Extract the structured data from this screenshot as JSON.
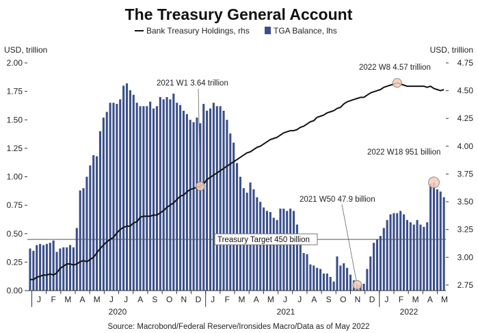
{
  "chart_data": {
    "type": "bar+line",
    "title": "The Treasury General Account",
    "legend": {
      "placement": "top-center",
      "items": [
        {
          "name": "Bank Treasury Holdings, rhs",
          "kind": "line",
          "color": "#111111"
        },
        {
          "name": "TGA Balance, lhs",
          "kind": "bar",
          "color": "#3a4f8a"
        }
      ]
    },
    "left_axis": {
      "label": "USD, trillion",
      "ylim": [
        0,
        2.0
      ],
      "ticks": [
        "0.00",
        "0.25",
        "0.50",
        "0.75",
        "1.00",
        "1.25",
        "1.50",
        "1.75",
        "2.00"
      ]
    },
    "right_axis": {
      "label": "USD, trillion",
      "ylim": [
        2.7,
        4.75
      ],
      "ticks": [
        "2.75",
        "3.00",
        "3.25",
        "3.50",
        "3.75",
        "4.00",
        "4.25",
        "4.50",
        "4.75"
      ]
    },
    "x_axis": {
      "months": [
        "J",
        "F",
        "M",
        "A",
        "M",
        "J",
        "J",
        "A",
        "S",
        "O",
        "N",
        "D",
        "J",
        "F",
        "M",
        "A",
        "M",
        "J",
        "J",
        "A",
        "S",
        "O",
        "N",
        "D",
        "J",
        "F",
        "M",
        "A",
        "M"
      ],
      "years": [
        "2020",
        "2021",
        "2022"
      ]
    },
    "bar_series": {
      "name": "TGA Balance, lhs",
      "color": "#3a4f8a",
      "values": [
        0.37,
        0.35,
        0.4,
        0.41,
        0.4,
        0.41,
        0.42,
        0.44,
        0.34,
        0.37,
        0.38,
        0.38,
        0.4,
        0.38,
        0.55,
        0.88,
        0.9,
        1.0,
        1.1,
        1.19,
        1.18,
        1.4,
        1.52,
        1.57,
        1.65,
        1.65,
        1.64,
        1.68,
        1.8,
        1.82,
        1.76,
        1.72,
        1.65,
        1.62,
        1.62,
        1.62,
        1.66,
        1.6,
        1.62,
        1.7,
        1.68,
        1.7,
        1.68,
        1.73,
        1.65,
        1.63,
        1.58,
        1.55,
        1.5,
        1.48,
        1.52,
        1.47,
        1.64,
        1.58,
        1.6,
        1.65,
        1.62,
        1.62,
        1.58,
        1.5,
        1.38,
        1.3,
        1.12,
        1.0,
        0.9,
        0.86,
        0.95,
        0.89,
        0.82,
        0.78,
        0.73,
        0.7,
        0.69,
        0.64,
        0.62,
        0.72,
        0.72,
        0.7,
        0.72,
        0.7,
        0.58,
        0.45,
        0.33,
        0.32,
        0.23,
        0.22,
        0.2,
        0.19,
        0.15,
        0.15,
        0.12,
        0.08,
        0.3,
        0.22,
        0.24,
        0.2,
        0.14,
        0.09,
        0.05,
        0.05,
        0.06,
        0.19,
        0.3,
        0.42,
        0.45,
        0.48,
        0.55,
        0.62,
        0.67,
        0.68,
        0.68,
        0.7,
        0.67,
        0.62,
        0.6,
        0.58,
        0.62,
        0.58,
        0.56,
        0.6,
        0.94,
        0.95,
        0.89,
        0.87,
        0.82
      ]
    },
    "line_series": {
      "name": "Bank Treasury Holdings, rhs",
      "color": "#111111",
      "values": [
        2.8,
        2.8,
        2.82,
        2.83,
        2.84,
        2.84,
        2.85,
        2.84,
        2.86,
        2.9,
        2.92,
        2.94,
        2.94,
        2.93,
        2.94,
        2.96,
        2.97,
        2.96,
        2.98,
        3.0,
        3.04,
        3.08,
        3.11,
        3.14,
        3.16,
        3.18,
        3.22,
        3.25,
        3.27,
        3.28,
        3.28,
        3.31,
        3.32,
        3.36,
        3.37,
        3.37,
        3.37,
        3.38,
        3.38,
        3.4,
        3.42,
        3.45,
        3.47,
        3.49,
        3.52,
        3.55,
        3.56,
        3.59,
        3.61,
        3.62,
        3.63,
        3.64,
        3.66,
        3.7,
        3.72,
        3.74,
        3.76,
        3.78,
        3.8,
        3.82,
        3.84,
        3.86,
        3.88,
        3.9,
        3.92,
        3.94,
        3.95,
        3.97,
        3.99,
        4.0,
        4.02,
        4.04,
        4.06,
        4.07,
        4.08,
        4.1,
        4.12,
        4.13,
        4.14,
        4.14,
        4.15,
        4.17,
        4.18,
        4.2,
        4.22,
        4.23,
        4.26,
        4.27,
        4.28,
        4.3,
        4.31,
        4.32,
        4.34,
        4.35,
        4.38,
        4.4,
        4.41,
        4.42,
        4.43,
        4.44,
        4.44,
        4.46,
        4.48,
        4.49,
        4.5,
        4.51,
        4.53,
        4.54,
        4.55,
        4.56,
        4.57,
        4.56,
        4.55,
        4.54,
        4.54,
        4.54,
        4.54,
        4.54,
        4.54,
        4.53,
        4.54,
        4.52,
        4.51,
        4.5,
        4.51
      ]
    },
    "reference_line": {
      "label": "Treasury Target 450 billion",
      "value": 0.45,
      "axis": "left"
    },
    "annotations": [
      {
        "label": "2021 W1 3.64 trillion",
        "index": 51,
        "series": "line"
      },
      {
        "label": "2022 W8 4.57 trillion",
        "index": 110,
        "series": "line"
      },
      {
        "label": "2021 W50 47.9 billion",
        "index": 98,
        "series": "bar"
      },
      {
        "label": "2022 W18 951 billion",
        "index": 121,
        "series": "bar"
      }
    ],
    "source": "Source: Macrobond/Federal Reserve/Ironsides Macro/Data as of May 2022",
    "grid": false
  }
}
